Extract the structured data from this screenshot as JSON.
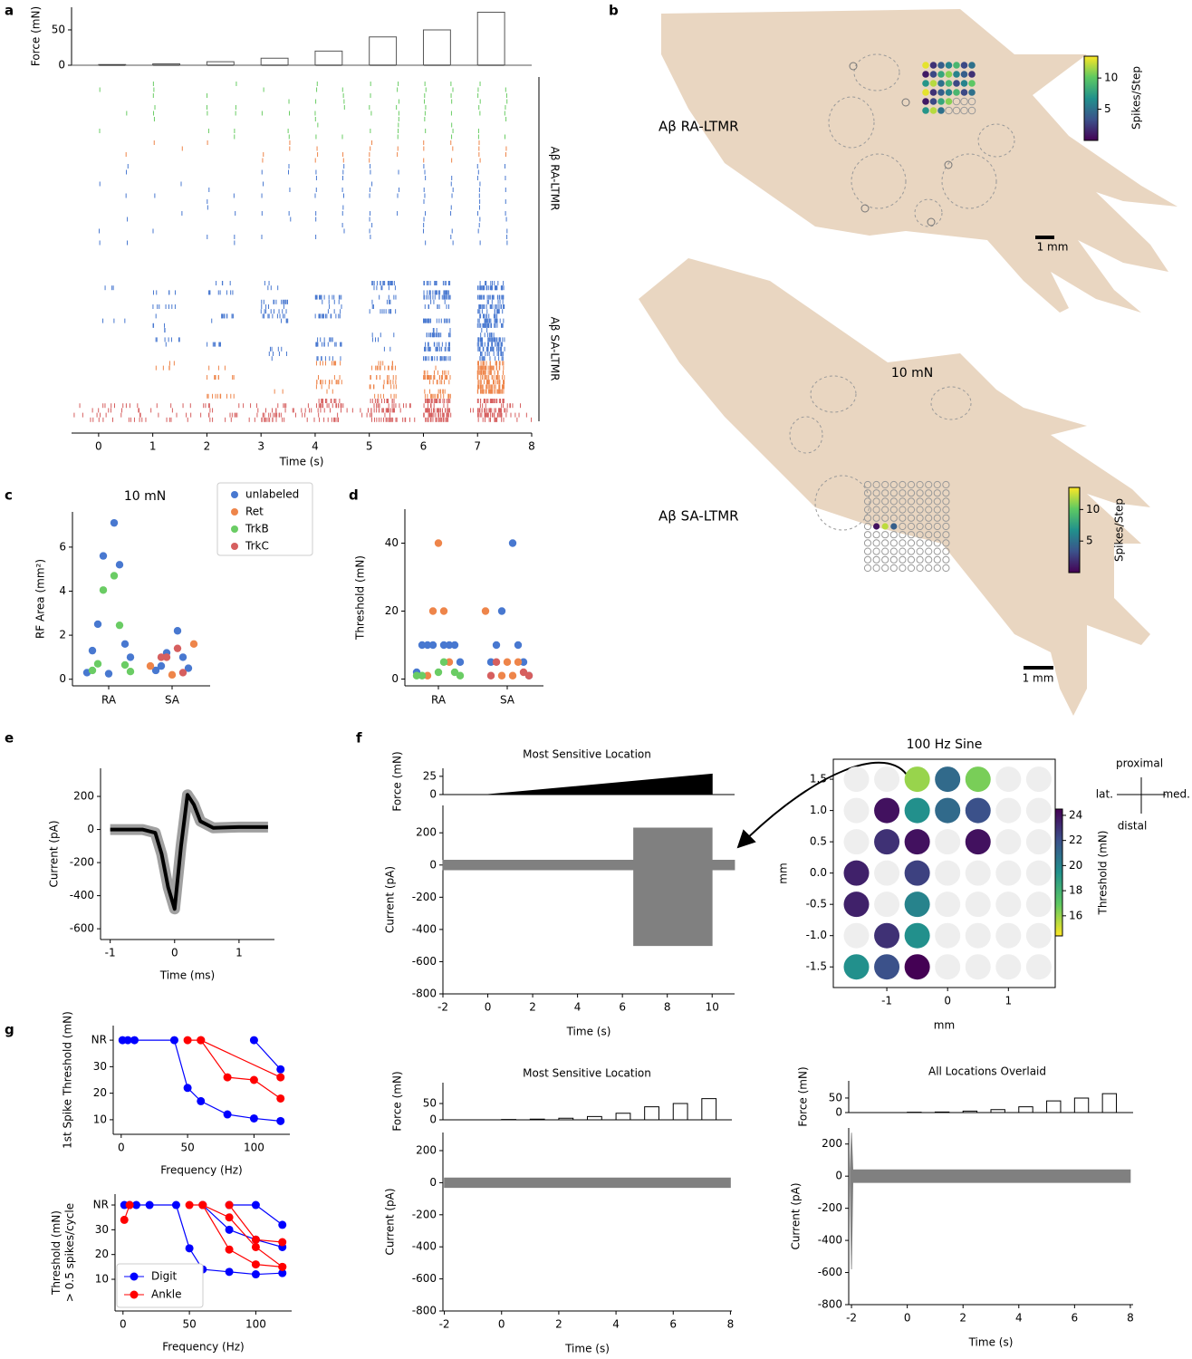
{
  "panel_labels": [
    "a",
    "b",
    "c",
    "d",
    "e",
    "f",
    "g"
  ],
  "chart_data": [
    {
      "type": "raster",
      "ylabel": "Force (mN)",
      "xlabel": "Time (s)",
      "x": [
        -0.5,
        0,
        0,
        0.5,
        0.5,
        1,
        1,
        1.5,
        1.5,
        2,
        2,
        2.5,
        2.5,
        3,
        3,
        3.5,
        3.5,
        4,
        4,
        4.5,
        4.5,
        5,
        5,
        5.5,
        5.5,
        6,
        6,
        6.5,
        6.5,
        7,
        7,
        7.5,
        7.5,
        8
      ],
      "values": [
        0,
        0,
        1,
        1,
        0,
        0,
        2,
        2,
        0,
        0,
        5,
        5,
        0,
        0,
        10,
        10,
        0,
        0,
        20,
        20,
        0,
        0,
        40,
        40,
        0,
        0,
        50,
        50,
        0,
        0,
        75,
        75,
        0,
        0
      ],
      "xlim": [
        -0.5,
        8
      ],
      "ylim": [
        0,
        82
      ],
      "yticks": [
        0,
        50
      ],
      "xticks": [
        0,
        1,
        2,
        3,
        4,
        5,
        6,
        7,
        8
      ],
      "group_labels": [
        "Aβ RA-LTMR",
        "Aβ SA-LTMR"
      ]
    },
    {
      "type": "diagram",
      "labels": [
        "Aβ RA-LTMR",
        "Aβ SA-LTMR"
      ],
      "force_label": "10 mN",
      "scale_bar": "1 mm",
      "colorbar_label": "Spikes/Step",
      "clim": [
        0,
        13.5
      ],
      "colorbar_ticks": [
        5,
        10
      ]
    },
    {
      "type": "strip",
      "title": "10 mN",
      "ylabel": "RF Area (mm²)",
      "categories": [
        "RA",
        "SA"
      ],
      "ylim": [
        -0.3,
        7.6
      ],
      "yticks": [
        0,
        2,
        4,
        6
      ],
      "series": [
        {
          "name": "unlabeled",
          "color": "#4878d0",
          "x": [
            "RA",
            "RA",
            "RA",
            "RA",
            "RA",
            "RA",
            "RA",
            "RA",
            "RA",
            "SA",
            "SA",
            "SA",
            "SA",
            "SA",
            "SA"
          ],
          "values": [
            7.1,
            5.6,
            5.2,
            2.5,
            1.6,
            1.3,
            1.0,
            0.3,
            0.25,
            2.2,
            1.2,
            1.0,
            0.6,
            0.5,
            0.4
          ]
        },
        {
          "name": "Ret",
          "color": "#ee854a",
          "x": [
            "SA",
            "SA",
            "SA"
          ],
          "values": [
            1.6,
            0.6,
            0.2
          ]
        },
        {
          "name": "TrkB",
          "color": "#6acc64",
          "x": [
            "RA",
            "RA",
            "RA",
            "RA",
            "RA",
            "RA",
            "RA"
          ],
          "values": [
            4.7,
            4.05,
            2.45,
            0.7,
            0.65,
            0.4,
            0.35
          ]
        },
        {
          "name": "TrkC",
          "color": "#d65f5f",
          "x": [
            "SA",
            "SA",
            "SA",
            "SA"
          ],
          "values": [
            1.4,
            1.0,
            0.3,
            1.0
          ]
        }
      ]
    },
    {
      "type": "strip",
      "ylabel": "Threshold (mN)",
      "categories": [
        "RA",
        "SA"
      ],
      "ylim": [
        -2,
        50
      ],
      "yticks": [
        0,
        20,
        40
      ],
      "series": [
        {
          "name": "unlabeled",
          "color": "#4878d0",
          "x": [
            "RA",
            "RA",
            "RA",
            "RA",
            "RA",
            "RA",
            "RA",
            "RA",
            "SA",
            "SA",
            "SA",
            "SA",
            "SA",
            "SA",
            "SA"
          ],
          "values": [
            10,
            10,
            10,
            10,
            10,
            10,
            5,
            2,
            40,
            20,
            10,
            10,
            5,
            5,
            1
          ]
        },
        {
          "name": "Ret",
          "color": "#ee854a",
          "x": [
            "RA",
            "RA",
            "RA",
            "RA",
            "RA",
            "SA",
            "SA",
            "SA",
            "SA",
            "SA"
          ],
          "values": [
            40,
            20,
            20,
            5,
            1,
            20,
            5,
            1,
            1,
            5
          ]
        },
        {
          "name": "TrkB",
          "color": "#6acc64",
          "x": [
            "RA",
            "RA",
            "RA",
            "RA",
            "RA",
            "RA"
          ],
          "values": [
            2,
            1,
            1,
            1,
            2,
            5
          ]
        },
        {
          "name": "TrkC",
          "color": "#d65f5f",
          "x": [
            "SA",
            "SA",
            "SA",
            "SA"
          ],
          "values": [
            5,
            2,
            1,
            1
          ]
        }
      ]
    },
    {
      "type": "line",
      "xlabel": "Time (ms)",
      "ylabel": "Current (pA)",
      "color": "#000000",
      "x": [
        -1,
        -0.5,
        -0.3,
        -0.2,
        -0.1,
        0,
        0.1,
        0.2,
        0.3,
        0.4,
        0.6,
        1,
        1.45
      ],
      "values": [
        0,
        0,
        -20,
        -150,
        -350,
        -480,
        -100,
        210,
        150,
        50,
        10,
        15,
        15
      ],
      "xlim": [
        -1.15,
        1.55
      ],
      "ylim": [
        -665,
        370
      ],
      "xticks": [
        -1,
        0,
        1
      ],
      "yticks": [
        -600,
        -400,
        -200,
        0,
        200
      ]
    },
    {
      "type": "trace",
      "title": "Most Sensitive Location",
      "xlabel": "Time (s)",
      "xlim": [
        -2,
        11
      ],
      "xticks": [
        -2,
        0,
        2,
        4,
        6,
        8,
        10
      ],
      "force": {
        "ylabel": "Force (mN)",
        "filled": true,
        "x": [
          -2,
          0,
          10,
          10,
          11
        ],
        "values": [
          0,
          0,
          28,
          0,
          0
        ],
        "ylim": [
          0,
          36
        ],
        "yticks": [
          0,
          25
        ]
      },
      "current": {
        "ylabel": "Current (pA)",
        "x": [
          -2,
          6.5,
          6.5,
          10,
          10,
          11
        ],
        "upper": [
          30,
          30,
          230,
          230,
          30,
          30
        ],
        "lower": [
          -30,
          -30,
          -500,
          -500,
          -30,
          -30
        ],
        "ylim": [
          -800,
          370
        ],
        "yticks": [
          -800,
          -600,
          -400,
          -200,
          0,
          200
        ]
      }
    },
    {
      "type": "heatmap",
      "title": "100 Hz Sine",
      "xlabel": "mm",
      "ylabel": "mm",
      "x": [
        -1.5,
        -1,
        -0.5,
        0,
        0.5,
        1,
        1.5
      ],
      "y": [
        1.5,
        1,
        0.5,
        0,
        -0.5,
        -1,
        -1.5
      ],
      "values": [
        [
          null,
          null,
          16,
          21,
          16.5,
          null,
          null
        ],
        [
          null,
          24,
          19.5,
          21,
          22,
          null,
          null
        ],
        [
          null,
          23,
          24,
          null,
          24,
          null,
          null
        ],
        [
          23.5,
          null,
          22.5,
          null,
          null,
          null,
          null
        ],
        [
          23.5,
          null,
          20,
          null,
          null,
          null,
          null
        ],
        [
          null,
          23,
          19.5,
          null,
          null,
          null,
          null
        ],
        [
          19.5,
          22,
          25,
          null,
          null,
          null,
          null
        ]
      ],
      "xlim": [
        -1.88,
        1.77
      ],
      "ylim": [
        -1.83,
        1.82
      ],
      "xticks": [
        -1,
        0,
        1
      ],
      "yticks": [
        {
          "value": -1.5,
          "label": "-1.5"
        },
        {
          "value": -1,
          "label": "-1.0"
        },
        {
          "value": -0.5,
          "label": "-0.5"
        },
        {
          "value": 0,
          "label": "0.0"
        },
        {
          "value": 0.5,
          "label": "0.5"
        },
        {
          "value": 1,
          "label": "1.0"
        },
        {
          "value": 1.5,
          "label": "1.5"
        }
      ],
      "colorbar_label": "Threshold (mN)",
      "clim": [
        14.4,
        24.5
      ],
      "colorbar_ticks": [
        16,
        18,
        20,
        22,
        24
      ],
      "compass": [
        "proximal",
        "distal",
        "lat.",
        "med."
      ]
    },
    {
      "type": "line",
      "xlabel": "Frequency (Hz)",
      "ylabel": [
        "1st Spike Threshold (mN)"
      ],
      "xlim": [
        -6,
        127
      ],
      "ylim": [
        4.5,
        45.5
      ],
      "xticks": [
        0,
        50,
        100
      ],
      "yticks": [
        10,
        20,
        30,
        {
          "value": 40,
          "label": "NR"
        }
      ],
      "series": [
        {
          "name": "Digit",
          "color": "#0000ff",
          "x": [
            1,
            5,
            10,
            40,
            50,
            60,
            80,
            100,
            120
          ],
          "values": [
            40,
            40,
            40,
            40,
            22,
            17,
            12,
            10.5,
            9.5
          ]
        },
        {
          "name": "Digit",
          "color": "#0000ff",
          "x": [
            100,
            120
          ],
          "values": [
            40,
            29
          ]
        },
        {
          "name": "Ankle",
          "color": "#ff0000",
          "x": [
            50,
            60,
            80,
            100,
            120
          ],
          "values": [
            40,
            40,
            26,
            25,
            18
          ]
        },
        {
          "name": "Ankle",
          "color": "#ff0000",
          "x": [
            60,
            120
          ],
          "values": [
            40,
            26
          ]
        }
      ]
    },
    {
      "type": "line",
      "xlabel": "Frequency (Hz)",
      "ylabel": [
        "Threshold (mN)",
        "> 0.5 spikes/cycle"
      ],
      "xlim": [
        -6,
        127
      ],
      "ylim": [
        -2.8,
        44.4
      ],
      "xticks": [
        0,
        50,
        100
      ],
      "yticks": [
        10,
        20,
        30,
        {
          "value": 40,
          "label": "NR"
        }
      ],
      "legend": "lower left",
      "series": [
        {
          "name": "Digit",
          "color": "#0000ff",
          "x": [
            1,
            5,
            10,
            20,
            40,
            50,
            60,
            80,
            100,
            120
          ],
          "values": [
            40,
            40,
            40,
            40,
            40,
            22.5,
            14,
            13,
            12,
            12.5
          ]
        },
        {
          "name": "Digit",
          "color": "#0000ff",
          "x": [
            60,
            80,
            100,
            120
          ],
          "values": [
            40,
            30,
            26,
            23
          ]
        },
        {
          "name": "Digit",
          "color": "#0000ff",
          "x": [
            80,
            100,
            120
          ],
          "values": [
            40,
            40,
            32
          ]
        },
        {
          "name": "Ankle",
          "color": "#ff0000",
          "x": [
            1,
            5
          ],
          "values": [
            34,
            40
          ]
        },
        {
          "name": "Ankle",
          "color": "#ff0000",
          "x": [
            50,
            60,
            80,
            100,
            120
          ],
          "values": [
            40,
            40,
            22,
            16,
            15
          ]
        },
        {
          "name": "Ankle",
          "color": "#ff0000",
          "x": [
            60,
            80,
            100,
            120
          ],
          "values": [
            40,
            35,
            23,
            15
          ]
        },
        {
          "name": "Ankle",
          "color": "#ff0000",
          "x": [
            80,
            100,
            120
          ],
          "values": [
            40,
            26,
            25
          ]
        }
      ]
    },
    {
      "type": "trace",
      "title": "Most Sensitive Location",
      "xlabel": "Time (s)",
      "xlim": [
        -2.05,
        8.05
      ],
      "xticks": [
        -2,
        0,
        2,
        4,
        6,
        8
      ],
      "force": {
        "ylabel": "Force (mN)",
        "filled": false,
        "x": [
          -2,
          0,
          0,
          0.5,
          0.5,
          1,
          1,
          1.5,
          1.5,
          2,
          2,
          2.5,
          2.5,
          3,
          3,
          3.5,
          3.5,
          4,
          4,
          4.5,
          4.5,
          5,
          5,
          5.5,
          5.5,
          6,
          6,
          6.5,
          6.5,
          7,
          7,
          7.5,
          7.5,
          8
        ],
        "values": [
          0,
          0,
          1,
          1,
          0,
          0,
          2,
          2,
          0,
          0,
          5,
          5,
          0,
          0,
          10,
          10,
          0,
          0,
          20,
          20,
          0,
          0,
          40,
          40,
          0,
          0,
          50,
          50,
          0,
          0,
          65,
          65,
          0,
          0
        ],
        "ylim": [
          0,
          114
        ],
        "yticks": [
          0,
          50
        ]
      },
      "current": {
        "ylabel": "Current (pA)",
        "x": [
          -2,
          8
        ],
        "upper": [
          30,
          30
        ],
        "lower": [
          -30,
          -30
        ],
        "ylim": [
          -800,
          313
        ],
        "yticks": [
          -800,
          -600,
          -400,
          -200,
          0,
          200
        ]
      }
    },
    {
      "type": "trace",
      "title": "All Locations Overlaid",
      "xlabel": "Time (s)",
      "xlim": [
        -2.1,
        8.1
      ],
      "xticks": [
        -2,
        0,
        2,
        4,
        6,
        8
      ],
      "force": {
        "ylabel": "Force (mN)",
        "filled": false,
        "x": [
          -2,
          0,
          0,
          0.5,
          0.5,
          1,
          1,
          1.5,
          1.5,
          2,
          2,
          2.5,
          2.5,
          3,
          3,
          3.5,
          3.5,
          4,
          4,
          4.5,
          4.5,
          5,
          5,
          5.5,
          5.5,
          6,
          6,
          6.5,
          6.5,
          7,
          7,
          7.5,
          7.5,
          8
        ],
        "values": [
          0,
          0,
          1,
          1,
          0,
          0,
          2,
          2,
          0,
          0,
          5,
          5,
          0,
          0,
          10,
          10,
          0,
          0,
          20,
          20,
          0,
          0,
          40,
          40,
          0,
          0,
          50,
          50,
          0,
          0,
          65,
          65,
          0,
          0
        ],
        "ylim": [
          0,
          109
        ],
        "yticks": [
          0,
          50
        ]
      },
      "current": {
        "ylabel": "Current (pA)",
        "x": [
          -2.05,
          -2,
          -1.95,
          -1.9,
          8
        ],
        "upper": [
          40,
          270,
          40,
          40,
          40
        ],
        "lower": [
          -40,
          -580,
          -40,
          -40,
          -40
        ],
        "ylim": [
          -800,
          300
        ],
        "yticks": [
          -800,
          -600,
          -400,
          -200,
          0,
          200
        ]
      }
    }
  ]
}
